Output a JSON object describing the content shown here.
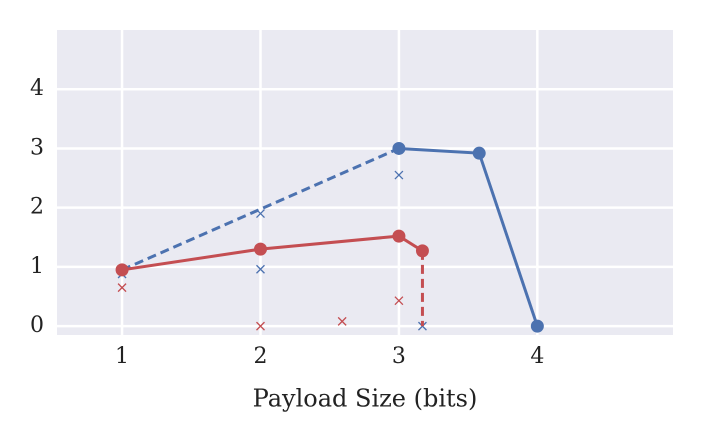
{
  "chart_data": {
    "type": "line",
    "xlabel": "Payload Size (bits)",
    "xlim": [
      0.53,
      4.98
    ],
    "ylim": [
      -0.15,
      5.0
    ],
    "xticks": [
      1,
      2,
      3,
      4
    ],
    "yticks": [
      0,
      1,
      2,
      3,
      4
    ],
    "grid": true,
    "series": [
      {
        "color": "#4c72b0",
        "linestyle": "solid",
        "marker": "circle",
        "x": [
          3,
          3.58,
          4
        ],
        "values": [
          3.0,
          2.92,
          0.0
        ]
      },
      {
        "color": "#4c72b0",
        "linestyle": "dashed",
        "marker": "none",
        "x": [
          1,
          3
        ],
        "values": [
          0.95,
          3.0
        ]
      },
      {
        "color": "#4c72b0",
        "linestyle": "none",
        "marker": "cross",
        "x": [
          1,
          2,
          2,
          3,
          3.17
        ],
        "values": [
          0.88,
          1.9,
          0.96,
          2.55,
          0.0
        ]
      },
      {
        "color": "#c44e52",
        "linestyle": "solid",
        "marker": "circle",
        "x": [
          1,
          2,
          3,
          3.17
        ],
        "values": [
          0.95,
          1.3,
          1.52,
          1.27
        ]
      },
      {
        "color": "#c44e52",
        "linestyle": "dashed",
        "marker": "none",
        "x": [
          3.17,
          3.17
        ],
        "values": [
          1.27,
          0.0
        ]
      },
      {
        "color": "#c44e52",
        "linestyle": "none",
        "marker": "cross",
        "x": [
          1,
          2,
          2.59,
          3
        ],
        "values": [
          0.65,
          0.0,
          0.08,
          0.43
        ]
      }
    ]
  }
}
